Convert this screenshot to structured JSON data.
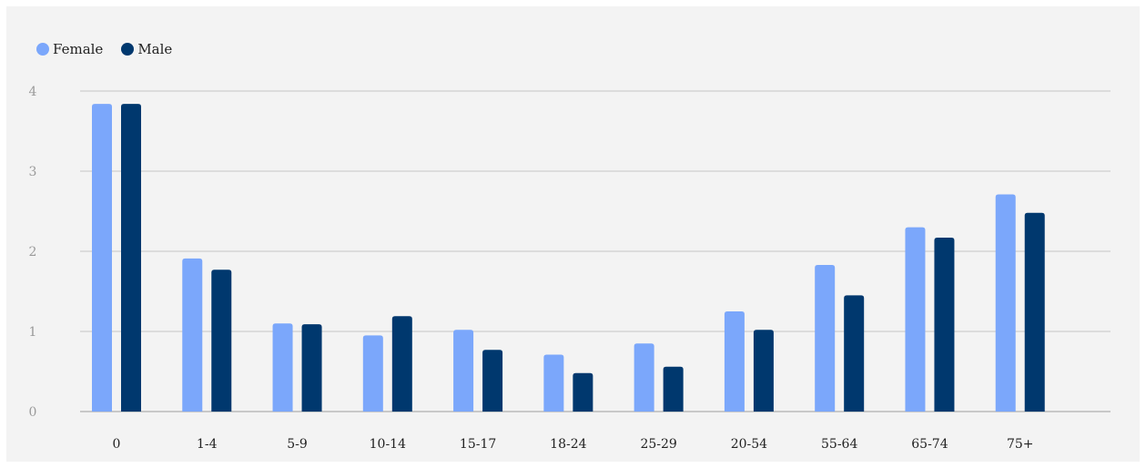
{
  "chart_data": {
    "type": "bar",
    "categories": [
      "0",
      "1-4",
      "5-9",
      "10-14",
      "15-17",
      "18-24",
      "25-29",
      "20-54",
      "55-64",
      "65-74",
      "75+"
    ],
    "series": [
      {
        "name": "Female",
        "color": "#7ba7fb",
        "values": [
          3.84,
          1.91,
          1.1,
          0.95,
          1.02,
          0.71,
          0.85,
          1.25,
          1.83,
          2.3,
          2.71
        ]
      },
      {
        "name": "Male",
        "color": "#00386e",
        "values": [
          3.84,
          1.77,
          1.09,
          1.19,
          0.77,
          0.48,
          0.56,
          1.02,
          1.45,
          2.17,
          2.48
        ]
      }
    ],
    "ylim": [
      0,
      4
    ],
    "yticks": [
      "0",
      "1",
      "2",
      "3",
      "4"
    ],
    "grid": true,
    "legend_position": "top-left",
    "title": "",
    "xlabel": "",
    "ylabel": ""
  }
}
